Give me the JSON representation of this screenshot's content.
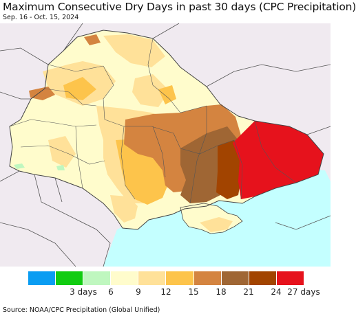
{
  "header": {
    "title": "Maximum Consecutive Dry Days in past 30 days (CPC Precipitation)",
    "subtitle": "Sep. 16 - Oct. 15, 2024"
  },
  "legend": {
    "colors": [
      "#0a9df2",
      "#11cc11",
      "#bff7bf",
      "#fffccc",
      "#ffe199",
      "#fdc44b",
      "#d48440",
      "#9f6634",
      "#a24400",
      "#e6121c"
    ],
    "labels": [
      {
        "text": "3 days",
        "boundary": 2
      },
      {
        "text": "6",
        "boundary": 3
      },
      {
        "text": "9",
        "boundary": 4
      },
      {
        "text": "12",
        "boundary": 5
      },
      {
        "text": "15",
        "boundary": 6
      },
      {
        "text": "18",
        "boundary": 7
      },
      {
        "text": "21",
        "boundary": 8
      },
      {
        "text": "24",
        "boundary": 9
      },
      {
        "text": "27 days",
        "boundary": 10
      }
    ]
  },
  "map": {
    "background_color": "#f0eaf0",
    "sea_color": "#c4ffff",
    "border_color": "#555555"
  },
  "footer": {
    "source": "Source: NOAA/CPC Precipitation (Global Unified)"
  }
}
